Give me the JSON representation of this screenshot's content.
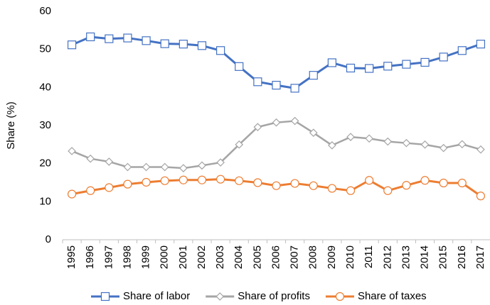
{
  "chart_data": {
    "type": "line",
    "y_label": "Share (%)",
    "categories": [
      "1995",
      "1996",
      "1997",
      "1998",
      "1999",
      "2000",
      "2001",
      "2002",
      "2003",
      "2004",
      "2005",
      "2006",
      "2007",
      "2008",
      "2009",
      "2010",
      "2011",
      "2012",
      "2013",
      "2014",
      "2015",
      "2016",
      "2017"
    ],
    "series": [
      {
        "name": "Share of labor",
        "color": "#4472c4",
        "marker": "square",
        "values": [
          51.2,
          53.3,
          52.8,
          53.0,
          52.3,
          51.5,
          51.4,
          51.0,
          49.7,
          45.5,
          41.5,
          40.6,
          39.8,
          43.2,
          46.5,
          45.1,
          45.0,
          45.6,
          46.1,
          46.6,
          48.0,
          49.7,
          51.4
        ]
      },
      {
        "name": "Share of profits",
        "color": "#a5a5a5",
        "marker": "diamond",
        "values": [
          23.3,
          21.3,
          20.5,
          19.1,
          19.1,
          19.1,
          18.8,
          19.5,
          20.3,
          25.0,
          29.6,
          30.8,
          31.2,
          28.1,
          24.8,
          27.0,
          26.6,
          25.8,
          25.4,
          25.0,
          24.1,
          25.1,
          23.7
        ]
      },
      {
        "name": "Share of taxes",
        "color": "#ed7d31",
        "marker": "circle",
        "values": [
          12.0,
          12.9,
          13.7,
          14.6,
          15.1,
          15.5,
          15.7,
          15.7,
          15.9,
          15.5,
          15.0,
          14.2,
          14.8,
          14.2,
          13.5,
          12.9,
          15.6,
          12.9,
          14.3,
          15.6,
          14.9,
          14.9,
          11.5
        ]
      }
    ],
    "ylim": [
      0,
      60
    ],
    "yticks": [
      0,
      10,
      20,
      30,
      40,
      50,
      60
    ],
    "grid": false,
    "legend": "bottom"
  }
}
